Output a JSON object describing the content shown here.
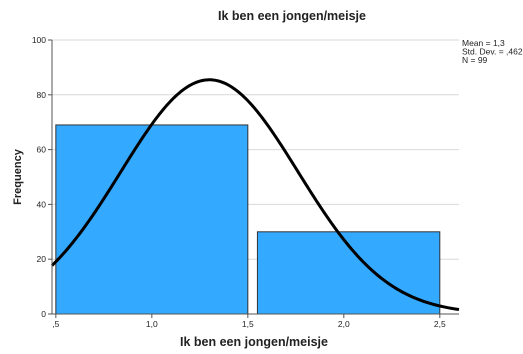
{
  "chart_data": {
    "type": "bar",
    "title": "Ik ben een jongen/meisje",
    "xlabel": "Ik ben een jongen/meisje",
    "ylabel": "Frequency",
    "xlim": [
      0.48,
      2.6
    ],
    "ylim": [
      0,
      100
    ],
    "x_ticks": [
      0.5,
      1.0,
      1.5,
      2.0,
      2.5
    ],
    "x_tick_labels": [
      ",5",
      "1,0",
      "1,5",
      "2,0",
      "2,5"
    ],
    "y_ticks": [
      0,
      20,
      40,
      60,
      80,
      100
    ],
    "y_tick_labels": [
      "0",
      "20",
      "40",
      "60",
      "80",
      "100"
    ],
    "grid": true,
    "bins": [
      {
        "start": 0.5,
        "end": 1.5,
        "value": 69
      },
      {
        "start": 1.55,
        "end": 2.5,
        "value": 30
      }
    ],
    "normal_curve": {
      "mean": 1.3,
      "sd": 0.462,
      "n": 99
    },
    "stats_text": [
      "Mean = 1,3",
      "Std. Dev. = ,462",
      "N = 99"
    ],
    "stats_placement": "top-right",
    "bar_color": "#33a9ff",
    "bar_edge_color": "#333333",
    "curve_color": "#000000",
    "grid_color": "#d9d9d9"
  }
}
